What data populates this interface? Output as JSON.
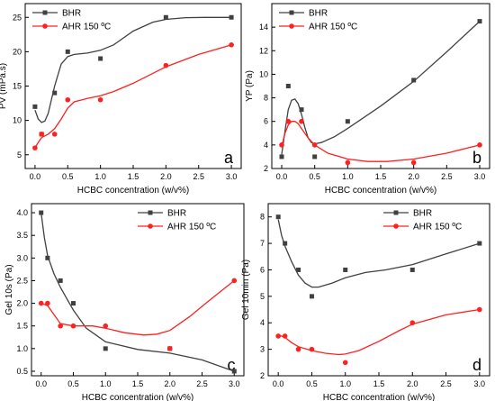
{
  "chart_data": [
    {
      "type": "line",
      "panel_label": "a",
      "xlabel": "HCBC concentration (w/v%)",
      "ylabel": "PV (mPa.s)",
      "xlim": [
        -0.15,
        3.15
      ],
      "ylim": [
        3,
        27
      ],
      "xticks": [
        0.0,
        0.5,
        1.0,
        1.5,
        2.0,
        2.5,
        3.0
      ],
      "xtick_labels": [
        "0.0",
        "0.5",
        "1.0",
        "1.5",
        "2.0",
        "2.5",
        "3.0"
      ],
      "yticks": [
        5,
        10,
        15,
        20,
        25
      ],
      "ytick_labels": [
        "5",
        "10",
        "15",
        "20",
        "25"
      ],
      "legend_position": "top-left",
      "series": [
        {
          "name": "BHR",
          "color": "#404040",
          "marker": "square",
          "x": [
            0,
            0.1,
            0.3,
            0.5,
            1,
            2,
            3
          ],
          "y": [
            12,
            8,
            14,
            20,
            19,
            25,
            25
          ],
          "fit_x": [
            0,
            0.05,
            0.1,
            0.15,
            0.2,
            0.3,
            0.4,
            0.5,
            0.6,
            0.8,
            1.0,
            1.2,
            1.5,
            1.8,
            2.0,
            2.3,
            2.6,
            3.0
          ],
          "fit_y": [
            11.5,
            10.2,
            9.7,
            9.9,
            11.0,
            15.0,
            18.2,
            19.3,
            19.6,
            19.8,
            20.2,
            21.0,
            23.0,
            24.3,
            24.7,
            24.95,
            25.0,
            25.0
          ]
        },
        {
          "name": "AHR 150 ºC",
          "color": "#ff2020",
          "marker": "circle",
          "x": [
            0,
            0.1,
            0.3,
            0.5,
            1,
            2,
            3
          ],
          "y": [
            6,
            8,
            8,
            13,
            13,
            18,
            21
          ],
          "fit_x": [
            0,
            0.05,
            0.1,
            0.2,
            0.3,
            0.4,
            0.5,
            0.6,
            0.8,
            1.0,
            1.2,
            1.5,
            2.0,
            2.5,
            3.0
          ],
          "fit_y": [
            6.0,
            6.8,
            7.5,
            8.0,
            8.8,
            10.2,
            11.8,
            12.7,
            13.2,
            13.6,
            14.2,
            15.4,
            17.8,
            19.6,
            21.0
          ]
        }
      ]
    },
    {
      "type": "line",
      "panel_label": "b",
      "xlabel": "HCBC concentration (w/v%)",
      "ylabel": "YP (Pa)",
      "xlim": [
        -0.15,
        3.15
      ],
      "ylim": [
        2,
        16
      ],
      "xticks": [
        0.0,
        0.5,
        1.0,
        1.5,
        2.0,
        2.5,
        3.0
      ],
      "xtick_labels": [
        "0.0",
        "0.5",
        "1.0",
        "1.5",
        "2.0",
        "2.5",
        "3.0"
      ],
      "yticks": [
        2,
        4,
        6,
        8,
        10,
        12,
        14
      ],
      "ytick_labels": [
        "2",
        "4",
        "6",
        "8",
        "10",
        "12",
        "14"
      ],
      "legend_position": "top-left",
      "series": [
        {
          "name": "BHR",
          "color": "#404040",
          "marker": "square",
          "x": [
            0,
            0.1,
            0.3,
            0.5,
            1,
            2,
            3
          ],
          "y": [
            3,
            9,
            7,
            3,
            6,
            9.5,
            14.5
          ],
          "fit_x": [
            0,
            0.05,
            0.1,
            0.15,
            0.2,
            0.25,
            0.3,
            0.35,
            0.4,
            0.45,
            0.5,
            0.6,
            0.8,
            1.0,
            1.5,
            2.0,
            2.5,
            3.0
          ],
          "fit_y": [
            3.2,
            5.2,
            7.0,
            7.8,
            7.9,
            7.5,
            6.6,
            5.5,
            4.6,
            4.2,
            4.1,
            4.2,
            4.7,
            5.4,
            7.3,
            9.4,
            11.9,
            14.5
          ]
        },
        {
          "name": "AHR 150 ºC",
          "color": "#ff2020",
          "marker": "circle",
          "x": [
            0,
            0.1,
            0.3,
            0.5,
            1,
            2,
            3
          ],
          "y": [
            4,
            6,
            6,
            4,
            2.5,
            2.5,
            4
          ],
          "fit_x": [
            0,
            0.05,
            0.1,
            0.15,
            0.2,
            0.25,
            0.3,
            0.4,
            0.5,
            0.7,
            1.0,
            1.3,
            1.6,
            2.0,
            2.5,
            3.0
          ],
          "fit_y": [
            3.9,
            5.0,
            5.7,
            6.0,
            6.0,
            5.8,
            5.4,
            4.6,
            4.0,
            3.3,
            2.8,
            2.6,
            2.6,
            2.8,
            3.3,
            4.0
          ]
        }
      ]
    },
    {
      "type": "line",
      "panel_label": "c",
      "xlabel": "HCBC concentration (w/v%)",
      "ylabel": "Gel 10s (Pa)",
      "xlim": [
        -0.15,
        3.15
      ],
      "ylim": [
        0.4,
        4.2
      ],
      "xticks": [
        0.0,
        0.5,
        1.0,
        1.5,
        2.0,
        2.5,
        3.0
      ],
      "xtick_labels": [
        "0.0",
        "0.5",
        "1.0",
        "1.5",
        "2.0",
        "2.5",
        "3.0"
      ],
      "yticks": [
        0.5,
        1.0,
        1.5,
        2.0,
        2.5,
        3.0,
        3.5,
        4.0
      ],
      "ytick_labels": [
        "0.5",
        "1.0",
        "1.5",
        "2.0",
        "2.5",
        "3.0",
        "3.5",
        "4.0"
      ],
      "legend_position": "top-right",
      "series": [
        {
          "name": "BHR",
          "color": "#404040",
          "marker": "square",
          "x": [
            0,
            0.1,
            0.3,
            0.5,
            1,
            2,
            3
          ],
          "y": [
            4,
            3,
            2.5,
            2,
            1,
            1,
            0.5
          ],
          "fit_x": [
            0,
            0.05,
            0.1,
            0.2,
            0.3,
            0.4,
            0.5,
            0.7,
            1.0,
            1.5,
            2.0,
            2.5,
            3.0
          ],
          "fit_y": [
            4.0,
            3.45,
            3.05,
            2.65,
            2.35,
            2.1,
            1.85,
            1.45,
            1.15,
            0.98,
            0.9,
            0.75,
            0.5
          ]
        },
        {
          "name": "AHR 150 ºC",
          "color": "#ff2020",
          "marker": "circle",
          "x": [
            0,
            0.1,
            0.3,
            0.5,
            1,
            2,
            3
          ],
          "y": [
            2,
            2,
            1.5,
            1.5,
            1.5,
            1,
            2.5
          ],
          "fit_x": [
            0,
            0.1,
            0.2,
            0.3,
            0.5,
            0.8,
            1.0,
            1.3,
            1.6,
            1.8,
            2.0,
            2.3,
            2.6,
            3.0
          ],
          "fit_y": [
            2.0,
            1.95,
            1.75,
            1.55,
            1.5,
            1.5,
            1.45,
            1.35,
            1.3,
            1.32,
            1.4,
            1.7,
            2.05,
            2.5
          ]
        }
      ]
    },
    {
      "type": "line",
      "panel_label": "d",
      "xlabel": "HCBC concentration (w/v%)",
      "ylabel": "Gel 10min (Pa)",
      "xlim": [
        -0.15,
        3.15
      ],
      "ylim": [
        2,
        8.5
      ],
      "xticks": [
        0.0,
        0.5,
        1.0,
        1.5,
        2.0,
        2.5,
        3.0
      ],
      "xtick_labels": [
        "0.0",
        "0.5",
        "1.0",
        "1.5",
        "2.0",
        "2.5",
        "3.0"
      ],
      "yticks": [
        2,
        3,
        4,
        5,
        6,
        7,
        8
      ],
      "ytick_labels": [
        "2",
        "3",
        "4",
        "5",
        "6",
        "7",
        "8"
      ],
      "legend_position": "top-right",
      "series": [
        {
          "name": "BHR",
          "color": "#404040",
          "marker": "square",
          "x": [
            0,
            0.1,
            0.3,
            0.5,
            1,
            2,
            3
          ],
          "y": [
            8,
            7,
            6,
            5,
            6,
            6,
            7
          ],
          "fit_x": [
            0,
            0.05,
            0.1,
            0.2,
            0.3,
            0.4,
            0.5,
            0.6,
            0.8,
            1.0,
            1.3,
            1.6,
            2.0,
            2.5,
            3.0
          ],
          "fit_y": [
            7.9,
            7.3,
            6.9,
            6.3,
            5.8,
            5.5,
            5.35,
            5.35,
            5.5,
            5.7,
            5.9,
            6.0,
            6.2,
            6.6,
            7.0
          ]
        },
        {
          "name": "AHR 150 ºC",
          "color": "#ff2020",
          "marker": "circle",
          "x": [
            0,
            0.1,
            0.3,
            0.5,
            1,
            2,
            3
          ],
          "y": [
            3.5,
            3.5,
            3,
            3,
            2.5,
            4,
            4.5
          ],
          "fit_x": [
            0,
            0.1,
            0.2,
            0.3,
            0.5,
            0.7,
            0.9,
            1.0,
            1.2,
            1.5,
            1.8,
            2.0,
            2.5,
            3.0
          ],
          "fit_y": [
            3.55,
            3.45,
            3.25,
            3.1,
            2.95,
            2.85,
            2.8,
            2.82,
            2.95,
            3.3,
            3.7,
            3.95,
            4.3,
            4.5
          ]
        }
      ]
    }
  ]
}
